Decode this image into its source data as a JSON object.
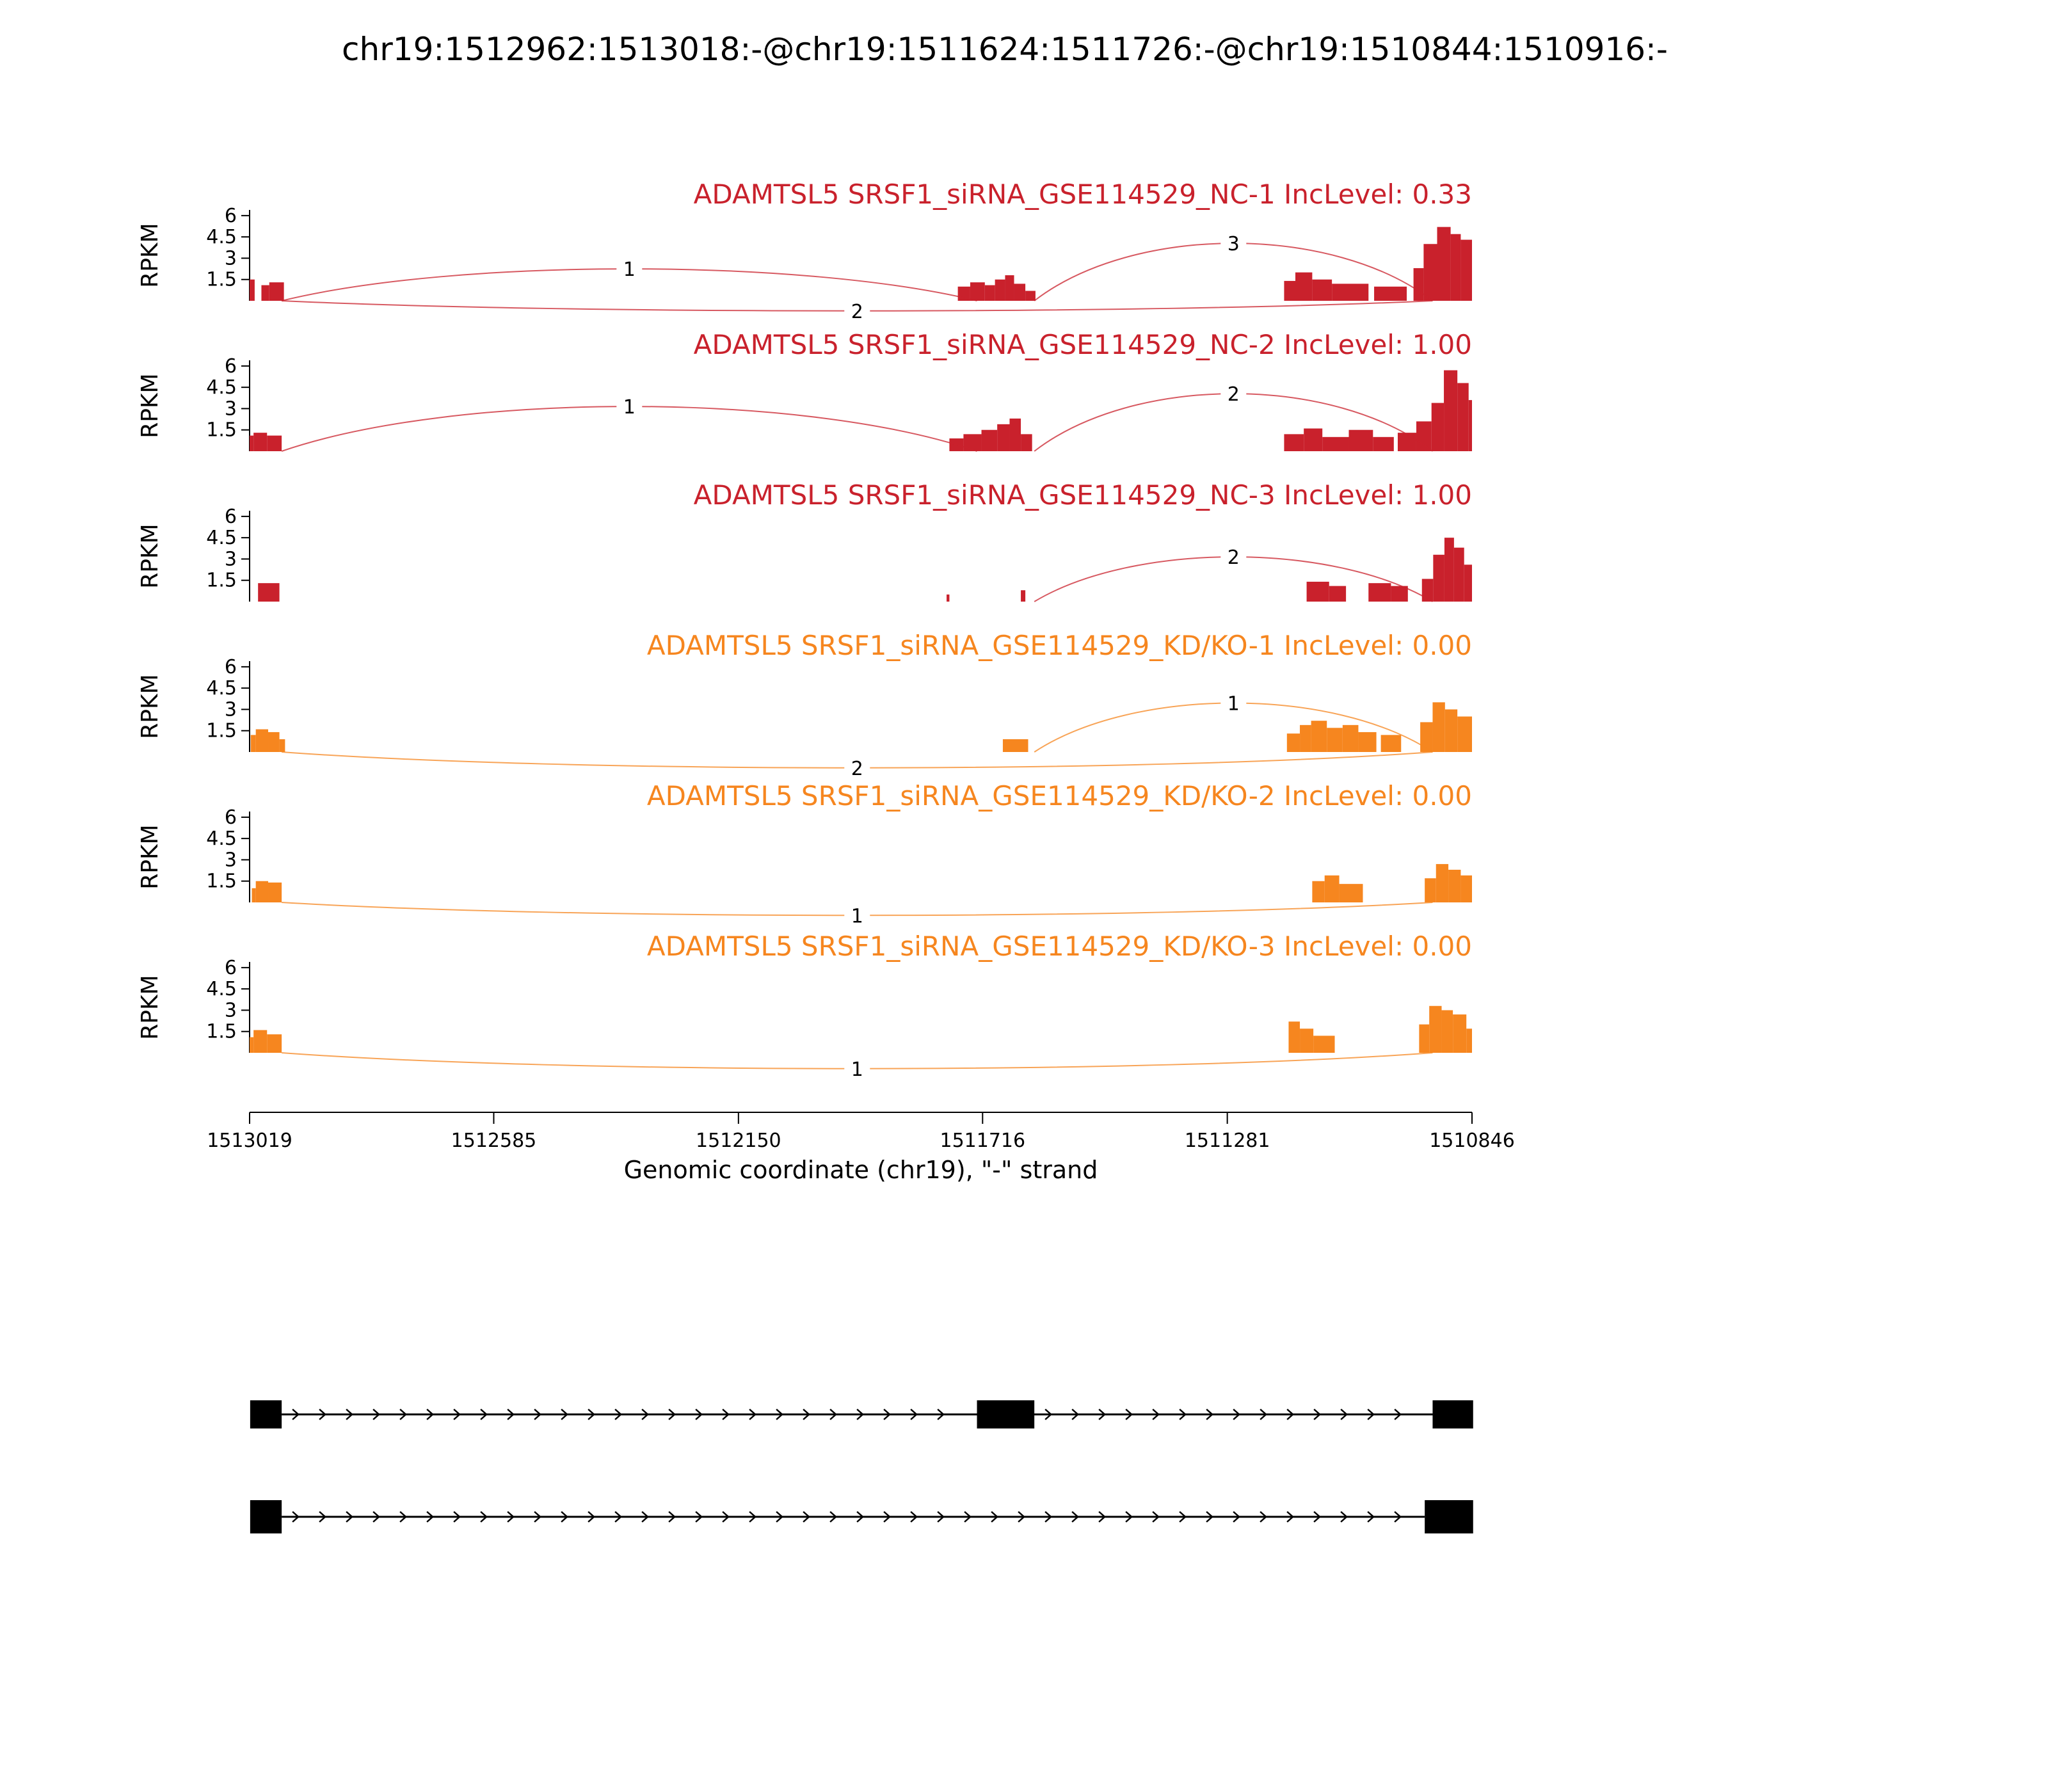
{
  "title": "chr19:1512962:1513018:-@chr19:1511624:1511726:-@chr19:1510844:1510916:-",
  "axes": {
    "y_label": "RPKM",
    "y_ticks": [
      1.5,
      3,
      4.5,
      6
    ],
    "y_max": 6.4,
    "x_label": "Genomic coordinate (chr19), \"-\" strand",
    "x_ticks": [
      1513019,
      1512585,
      1512150,
      1511716,
      1511281,
      1510846
    ],
    "x_range": [
      1513019,
      1510846
    ]
  },
  "colors": {
    "nc": "#c9212c",
    "kd": "#f6861f",
    "axis": "#000000",
    "gene_model": "#000000"
  },
  "chart_data": {
    "type": "area",
    "tracks": [
      {
        "label": "ADAMTSL5 SRSF1_siRNA_GSE114529_NC-1 IncLevel: 0.33",
        "color_key": "nc",
        "coverage": [
          [
            1513019,
            1513010,
            1.5
          ],
          [
            1512998,
            1512984,
            1.1
          ],
          [
            1512984,
            1512958,
            1.3
          ],
          [
            1511760,
            1511738,
            1.0
          ],
          [
            1511738,
            1511712,
            1.3
          ],
          [
            1511712,
            1511694,
            1.1
          ],
          [
            1511694,
            1511676,
            1.5
          ],
          [
            1511676,
            1511660,
            1.8
          ],
          [
            1511660,
            1511640,
            1.2
          ],
          [
            1511640,
            1511622,
            0.7
          ],
          [
            1511180,
            1511160,
            1.4
          ],
          [
            1511160,
            1511130,
            2.0
          ],
          [
            1511130,
            1511095,
            1.5
          ],
          [
            1511095,
            1511030,
            1.2
          ],
          [
            1511020,
            1510962,
            1.0
          ],
          [
            1510950,
            1510932,
            2.3
          ],
          [
            1510932,
            1510908,
            4.0
          ],
          [
            1510908,
            1510884,
            5.2
          ],
          [
            1510884,
            1510866,
            4.7
          ],
          [
            1510866,
            1510846,
            4.3
          ]
        ],
        "junctions": [
          {
            "from": 1512962,
            "to": 1511726,
            "count": 1,
            "side": "top",
            "apex": 3.0
          },
          {
            "from": 1511624,
            "to": 1510916,
            "count": 3,
            "side": "top",
            "apex": 5.4
          },
          {
            "from": 1512962,
            "to": 1510916,
            "count": 2,
            "side": "bottom",
            "dip": 21
          }
        ]
      },
      {
        "label": "ADAMTSL5 SRSF1_siRNA_GSE114529_NC-2 IncLevel: 1.00",
        "color_key": "nc",
        "coverage": [
          [
            1513019,
            1513012,
            1.1
          ],
          [
            1513012,
            1512988,
            1.3
          ],
          [
            1512988,
            1512962,
            1.1
          ],
          [
            1511775,
            1511750,
            0.9
          ],
          [
            1511750,
            1511718,
            1.2
          ],
          [
            1511718,
            1511690,
            1.5
          ],
          [
            1511690,
            1511668,
            1.9
          ],
          [
            1511668,
            1511648,
            2.3
          ],
          [
            1511648,
            1511628,
            1.2
          ],
          [
            1511180,
            1511145,
            1.2
          ],
          [
            1511145,
            1511112,
            1.6
          ],
          [
            1511112,
            1511065,
            1.0
          ],
          [
            1511065,
            1511022,
            1.5
          ],
          [
            1511022,
            1510985,
            1.0
          ],
          [
            1510978,
            1510945,
            1.3
          ],
          [
            1510945,
            1510918,
            2.1
          ],
          [
            1510918,
            1510896,
            3.4
          ],
          [
            1510896,
            1510872,
            5.7
          ],
          [
            1510872,
            1510852,
            4.8
          ],
          [
            1510852,
            1510846,
            3.6
          ]
        ],
        "junctions": [
          {
            "from": 1512962,
            "to": 1511726,
            "count": 1,
            "side": "top",
            "apex": 4.2
          },
          {
            "from": 1511624,
            "to": 1510916,
            "count": 2,
            "side": "top",
            "apex": 5.4
          }
        ]
      },
      {
        "label": "ADAMTSL5 SRSF1_siRNA_GSE114529_NC-3 IncLevel: 1.00",
        "color_key": "nc",
        "coverage": [
          [
            1513004,
            1512966,
            1.3
          ],
          [
            1511780,
            1511775,
            0.5
          ],
          [
            1511648,
            1511640,
            0.8
          ],
          [
            1511140,
            1511100,
            1.4
          ],
          [
            1511100,
            1511070,
            1.1
          ],
          [
            1511030,
            1510990,
            1.3
          ],
          [
            1510990,
            1510960,
            1.1
          ],
          [
            1510935,
            1510915,
            1.6
          ],
          [
            1510915,
            1510895,
            3.3
          ],
          [
            1510895,
            1510878,
            4.5
          ],
          [
            1510878,
            1510860,
            3.8
          ],
          [
            1510860,
            1510846,
            2.6
          ]
        ],
        "junctions": [
          {
            "from": 1511624,
            "to": 1510916,
            "count": 2,
            "side": "top",
            "apex": 4.2
          }
        ]
      },
      {
        "label": "ADAMTSL5 SRSF1_siRNA_GSE114529_KD/KO-1 IncLevel: 0.00",
        "color_key": "kd",
        "coverage": [
          [
            1513017,
            1513008,
            1.2
          ],
          [
            1513008,
            1512986,
            1.6
          ],
          [
            1512986,
            1512966,
            1.4
          ],
          [
            1512966,
            1512956,
            0.9
          ],
          [
            1511680,
            1511635,
            0.9
          ],
          [
            1511175,
            1511152,
            1.3
          ],
          [
            1511152,
            1511132,
            1.9
          ],
          [
            1511132,
            1511104,
            2.2
          ],
          [
            1511104,
            1511076,
            1.7
          ],
          [
            1511076,
            1511048,
            1.9
          ],
          [
            1511048,
            1511016,
            1.4
          ],
          [
            1511008,
            1510972,
            1.2
          ],
          [
            1510938,
            1510916,
            2.1
          ],
          [
            1510916,
            1510894,
            3.5
          ],
          [
            1510894,
            1510872,
            3.0
          ],
          [
            1510872,
            1510846,
            2.5
          ]
        ],
        "junctions": [
          {
            "from": 1511624,
            "to": 1510916,
            "count": 1,
            "side": "top",
            "apex": 4.6
          },
          {
            "from": 1512962,
            "to": 1510916,
            "count": 2,
            "side": "bottom",
            "dip": 33
          }
        ]
      },
      {
        "label": "ADAMTSL5 SRSF1_siRNA_GSE114529_KD/KO-2 IncLevel: 0.00",
        "color_key": "kd",
        "coverage": [
          [
            1513015,
            1513008,
            1.0
          ],
          [
            1513008,
            1512986,
            1.5
          ],
          [
            1512986,
            1512962,
            1.4
          ],
          [
            1511130,
            1511108,
            1.5
          ],
          [
            1511108,
            1511082,
            1.9
          ],
          [
            1511082,
            1511040,
            1.3
          ],
          [
            1510930,
            1510910,
            1.7
          ],
          [
            1510910,
            1510888,
            2.7
          ],
          [
            1510888,
            1510866,
            2.3
          ],
          [
            1510866,
            1510846,
            1.9
          ]
        ],
        "junctions": [
          {
            "from": 1512962,
            "to": 1510916,
            "count": 1,
            "side": "bottom",
            "dip": 27
          }
        ]
      },
      {
        "label": "ADAMTSL5 SRSF1_siRNA_GSE114529_KD/KO-3 IncLevel: 0.00",
        "color_key": "kd",
        "coverage": [
          [
            1513019,
            1513012,
            1.1
          ],
          [
            1513012,
            1512988,
            1.6
          ],
          [
            1512988,
            1512962,
            1.3
          ],
          [
            1511172,
            1511152,
            2.2
          ],
          [
            1511152,
            1511128,
            1.7
          ],
          [
            1511128,
            1511090,
            1.2
          ],
          [
            1510940,
            1510922,
            2.0
          ],
          [
            1510922,
            1510900,
            3.3
          ],
          [
            1510900,
            1510880,
            3.0
          ],
          [
            1510880,
            1510856,
            2.7
          ],
          [
            1510856,
            1510846,
            1.7
          ]
        ],
        "junctions": [
          {
            "from": 1512962,
            "to": 1510916,
            "count": 1,
            "side": "bottom",
            "dip": 33
          }
        ]
      }
    ],
    "gene_model": {
      "transcripts": [
        {
          "exons": [
            [
              1513018,
              1512962
            ],
            [
              1511726,
              1511624
            ],
            [
              1510916,
              1510844
            ]
          ]
        },
        {
          "exons": [
            [
              1513018,
              1512962
            ],
            [
              1510930,
              1510844
            ]
          ]
        }
      ]
    }
  }
}
